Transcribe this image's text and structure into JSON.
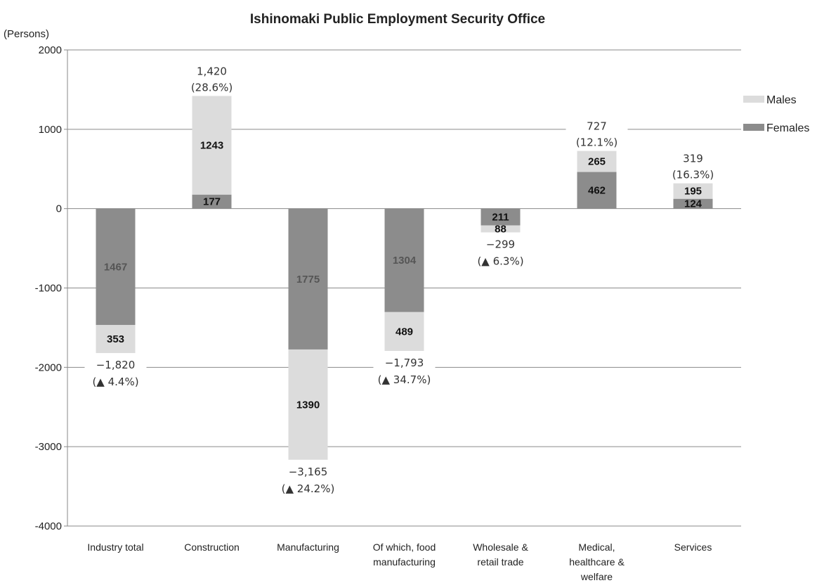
{
  "chart_data": {
    "type": "bar",
    "stacked": true,
    "title": "Ishinomaki Public Employment Security Office",
    "ylabel": "(Persons)",
    "ylim": [
      -4000,
      2000
    ],
    "yticks": [
      "2000",
      "1000",
      "0",
      "-1000",
      "-2000",
      "-3000",
      "-4000"
    ],
    "grid": true,
    "legend_position": "right",
    "categories": [
      [
        "Industry total"
      ],
      [
        "Construction"
      ],
      [
        "Manufacturing"
      ],
      [
        "Of which, food",
        "manufacturing"
      ],
      [
        "Wholesale &",
        "retail trade"
      ],
      [
        "Medical,",
        "healthcare &",
        "welfare"
      ],
      [
        "Services"
      ]
    ],
    "series": [
      {
        "name": "Females",
        "color": "#8c8c8c",
        "values": [
          -1467,
          177,
          -1775,
          -1304,
          -211,
          462,
          124
        ],
        "labels": [
          "1467",
          "177",
          "1775",
          "1304",
          "211",
          "462",
          "124"
        ]
      },
      {
        "name": "Males",
        "color": "#dcdcdc",
        "values": [
          -353,
          1243,
          -1390,
          -489,
          -88,
          265,
          195
        ],
        "labels": [
          "353",
          "1243",
          "1390",
          "489",
          "88",
          "265",
          "195"
        ]
      }
    ],
    "totals": [
      {
        "value": "−1,820",
        "pct": "(▲ 4.4%)"
      },
      {
        "value": "1,420",
        "pct": "(28.6%)"
      },
      {
        "value": "−3,165",
        "pct": "(▲ 24.2%)"
      },
      {
        "value": "−1,793",
        "pct": "(▲ 34.7%)"
      },
      {
        "value": "−299",
        "pct": "(▲ 6.3%)"
      },
      {
        "value": "727",
        "pct": "(12.1%)"
      },
      {
        "value": "319",
        "pct": "(16.3%)"
      }
    ]
  }
}
